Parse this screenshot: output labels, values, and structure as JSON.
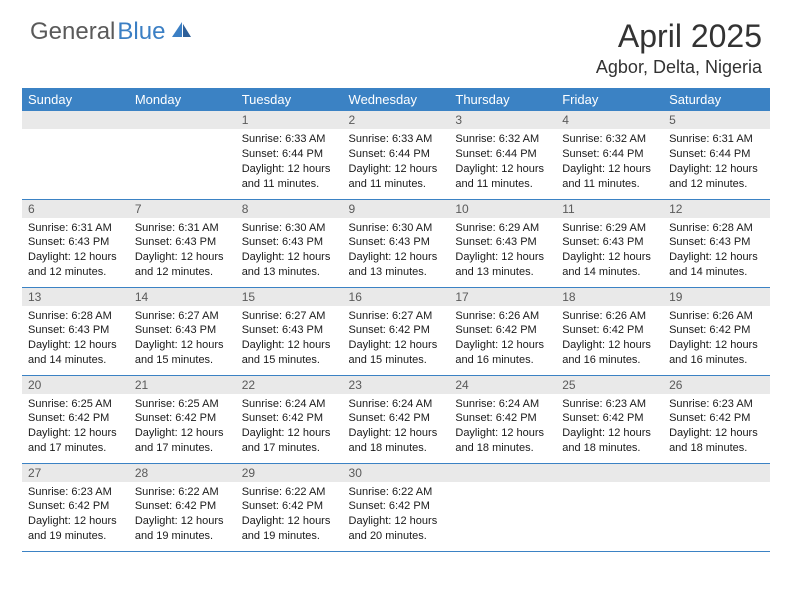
{
  "logo": {
    "part1": "General",
    "part2": "Blue"
  },
  "title": "April 2025",
  "location": "Agbor, Delta, Nigeria",
  "colors": {
    "header_bg": "#3b82c4",
    "header_text": "#ffffff",
    "daynum_bg": "#e9e9e9",
    "daynum_text": "#5a5a5a",
    "body_text": "#1a1a1a",
    "logo_gray": "#5a5a5a",
    "logo_blue": "#3b7fc4",
    "border": "#3b82c4"
  },
  "weekdays": [
    "Sunday",
    "Monday",
    "Tuesday",
    "Wednesday",
    "Thursday",
    "Friday",
    "Saturday"
  ],
  "weeks": [
    [
      null,
      null,
      {
        "n": "1",
        "sr": "Sunrise: 6:33 AM",
        "ss": "Sunset: 6:44 PM",
        "d1": "Daylight: 12 hours",
        "d2": "and 11 minutes."
      },
      {
        "n": "2",
        "sr": "Sunrise: 6:33 AM",
        "ss": "Sunset: 6:44 PM",
        "d1": "Daylight: 12 hours",
        "d2": "and 11 minutes."
      },
      {
        "n": "3",
        "sr": "Sunrise: 6:32 AM",
        "ss": "Sunset: 6:44 PM",
        "d1": "Daylight: 12 hours",
        "d2": "and 11 minutes."
      },
      {
        "n": "4",
        "sr": "Sunrise: 6:32 AM",
        "ss": "Sunset: 6:44 PM",
        "d1": "Daylight: 12 hours",
        "d2": "and 11 minutes."
      },
      {
        "n": "5",
        "sr": "Sunrise: 6:31 AM",
        "ss": "Sunset: 6:44 PM",
        "d1": "Daylight: 12 hours",
        "d2": "and 12 minutes."
      }
    ],
    [
      {
        "n": "6",
        "sr": "Sunrise: 6:31 AM",
        "ss": "Sunset: 6:43 PM",
        "d1": "Daylight: 12 hours",
        "d2": "and 12 minutes."
      },
      {
        "n": "7",
        "sr": "Sunrise: 6:31 AM",
        "ss": "Sunset: 6:43 PM",
        "d1": "Daylight: 12 hours",
        "d2": "and 12 minutes."
      },
      {
        "n": "8",
        "sr": "Sunrise: 6:30 AM",
        "ss": "Sunset: 6:43 PM",
        "d1": "Daylight: 12 hours",
        "d2": "and 13 minutes."
      },
      {
        "n": "9",
        "sr": "Sunrise: 6:30 AM",
        "ss": "Sunset: 6:43 PM",
        "d1": "Daylight: 12 hours",
        "d2": "and 13 minutes."
      },
      {
        "n": "10",
        "sr": "Sunrise: 6:29 AM",
        "ss": "Sunset: 6:43 PM",
        "d1": "Daylight: 12 hours",
        "d2": "and 13 minutes."
      },
      {
        "n": "11",
        "sr": "Sunrise: 6:29 AM",
        "ss": "Sunset: 6:43 PM",
        "d1": "Daylight: 12 hours",
        "d2": "and 14 minutes."
      },
      {
        "n": "12",
        "sr": "Sunrise: 6:28 AM",
        "ss": "Sunset: 6:43 PM",
        "d1": "Daylight: 12 hours",
        "d2": "and 14 minutes."
      }
    ],
    [
      {
        "n": "13",
        "sr": "Sunrise: 6:28 AM",
        "ss": "Sunset: 6:43 PM",
        "d1": "Daylight: 12 hours",
        "d2": "and 14 minutes."
      },
      {
        "n": "14",
        "sr": "Sunrise: 6:27 AM",
        "ss": "Sunset: 6:43 PM",
        "d1": "Daylight: 12 hours",
        "d2": "and 15 minutes."
      },
      {
        "n": "15",
        "sr": "Sunrise: 6:27 AM",
        "ss": "Sunset: 6:43 PM",
        "d1": "Daylight: 12 hours",
        "d2": "and 15 minutes."
      },
      {
        "n": "16",
        "sr": "Sunrise: 6:27 AM",
        "ss": "Sunset: 6:42 PM",
        "d1": "Daylight: 12 hours",
        "d2": "and 15 minutes."
      },
      {
        "n": "17",
        "sr": "Sunrise: 6:26 AM",
        "ss": "Sunset: 6:42 PM",
        "d1": "Daylight: 12 hours",
        "d2": "and 16 minutes."
      },
      {
        "n": "18",
        "sr": "Sunrise: 6:26 AM",
        "ss": "Sunset: 6:42 PM",
        "d1": "Daylight: 12 hours",
        "d2": "and 16 minutes."
      },
      {
        "n": "19",
        "sr": "Sunrise: 6:26 AM",
        "ss": "Sunset: 6:42 PM",
        "d1": "Daylight: 12 hours",
        "d2": "and 16 minutes."
      }
    ],
    [
      {
        "n": "20",
        "sr": "Sunrise: 6:25 AM",
        "ss": "Sunset: 6:42 PM",
        "d1": "Daylight: 12 hours",
        "d2": "and 17 minutes."
      },
      {
        "n": "21",
        "sr": "Sunrise: 6:25 AM",
        "ss": "Sunset: 6:42 PM",
        "d1": "Daylight: 12 hours",
        "d2": "and 17 minutes."
      },
      {
        "n": "22",
        "sr": "Sunrise: 6:24 AM",
        "ss": "Sunset: 6:42 PM",
        "d1": "Daylight: 12 hours",
        "d2": "and 17 minutes."
      },
      {
        "n": "23",
        "sr": "Sunrise: 6:24 AM",
        "ss": "Sunset: 6:42 PM",
        "d1": "Daylight: 12 hours",
        "d2": "and 18 minutes."
      },
      {
        "n": "24",
        "sr": "Sunrise: 6:24 AM",
        "ss": "Sunset: 6:42 PM",
        "d1": "Daylight: 12 hours",
        "d2": "and 18 minutes."
      },
      {
        "n": "25",
        "sr": "Sunrise: 6:23 AM",
        "ss": "Sunset: 6:42 PM",
        "d1": "Daylight: 12 hours",
        "d2": "and 18 minutes."
      },
      {
        "n": "26",
        "sr": "Sunrise: 6:23 AM",
        "ss": "Sunset: 6:42 PM",
        "d1": "Daylight: 12 hours",
        "d2": "and 18 minutes."
      }
    ],
    [
      {
        "n": "27",
        "sr": "Sunrise: 6:23 AM",
        "ss": "Sunset: 6:42 PM",
        "d1": "Daylight: 12 hours",
        "d2": "and 19 minutes."
      },
      {
        "n": "28",
        "sr": "Sunrise: 6:22 AM",
        "ss": "Sunset: 6:42 PM",
        "d1": "Daylight: 12 hours",
        "d2": "and 19 minutes."
      },
      {
        "n": "29",
        "sr": "Sunrise: 6:22 AM",
        "ss": "Sunset: 6:42 PM",
        "d1": "Daylight: 12 hours",
        "d2": "and 19 minutes."
      },
      {
        "n": "30",
        "sr": "Sunrise: 6:22 AM",
        "ss": "Sunset: 6:42 PM",
        "d1": "Daylight: 12 hours",
        "d2": "and 20 minutes."
      },
      null,
      null,
      null
    ]
  ]
}
